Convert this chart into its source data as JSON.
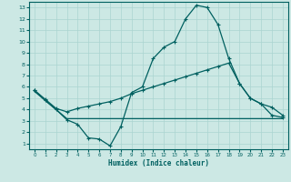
{
  "xlabel": "Humidex (Indice chaleur)",
  "bg_color": "#cce8e4",
  "grid_color": "#aad4d0",
  "line_color": "#006060",
  "xlim": [
    -0.5,
    23.5
  ],
  "ylim": [
    0.5,
    13.5
  ],
  "xticks": [
    0,
    1,
    2,
    3,
    4,
    5,
    6,
    7,
    8,
    9,
    10,
    11,
    12,
    13,
    14,
    15,
    16,
    17,
    18,
    19,
    20,
    21,
    22,
    23
  ],
  "yticks": [
    1,
    2,
    3,
    4,
    5,
    6,
    7,
    8,
    9,
    10,
    11,
    12,
    13
  ],
  "line1_x": [
    0,
    1,
    2,
    3,
    4,
    5,
    6,
    7,
    8,
    9,
    10,
    11,
    12,
    13,
    14,
    15,
    16,
    17,
    18,
    19,
    20,
    21,
    22,
    23
  ],
  "line1_y": [
    5.7,
    4.8,
    4.0,
    3.1,
    2.7,
    1.5,
    1.4,
    0.8,
    2.5,
    5.5,
    6.0,
    8.5,
    9.5,
    10.0,
    12.0,
    13.2,
    13.0,
    11.5,
    8.5,
    6.3,
    5.0,
    4.5,
    3.5,
    3.3
  ],
  "line2_x": [
    0,
    1,
    2,
    3,
    4,
    5,
    6,
    7,
    8,
    9,
    10,
    11,
    12,
    13,
    14,
    15,
    16,
    17,
    18,
    19,
    20,
    21,
    22,
    23
  ],
  "line2_y": [
    5.6,
    4.8,
    4.0,
    3.2,
    3.2,
    3.2,
    3.2,
    3.2,
    3.2,
    3.2,
    3.2,
    3.2,
    3.2,
    3.2,
    3.2,
    3.2,
    3.2,
    3.2,
    3.2,
    3.2,
    3.2,
    3.2,
    3.2,
    3.2
  ],
  "line3_x": [
    0,
    1,
    2,
    3,
    4,
    5,
    6,
    7,
    8,
    9,
    10,
    11,
    12,
    13,
    14,
    15,
    16,
    17,
    18,
    19,
    20,
    21,
    22,
    23
  ],
  "line3_y": [
    5.7,
    4.9,
    4.1,
    3.8,
    4.1,
    4.3,
    4.5,
    4.7,
    5.0,
    5.4,
    5.7,
    6.0,
    6.3,
    6.6,
    6.9,
    7.2,
    7.5,
    7.8,
    8.1,
    6.3,
    5.0,
    4.5,
    4.2,
    3.5
  ]
}
